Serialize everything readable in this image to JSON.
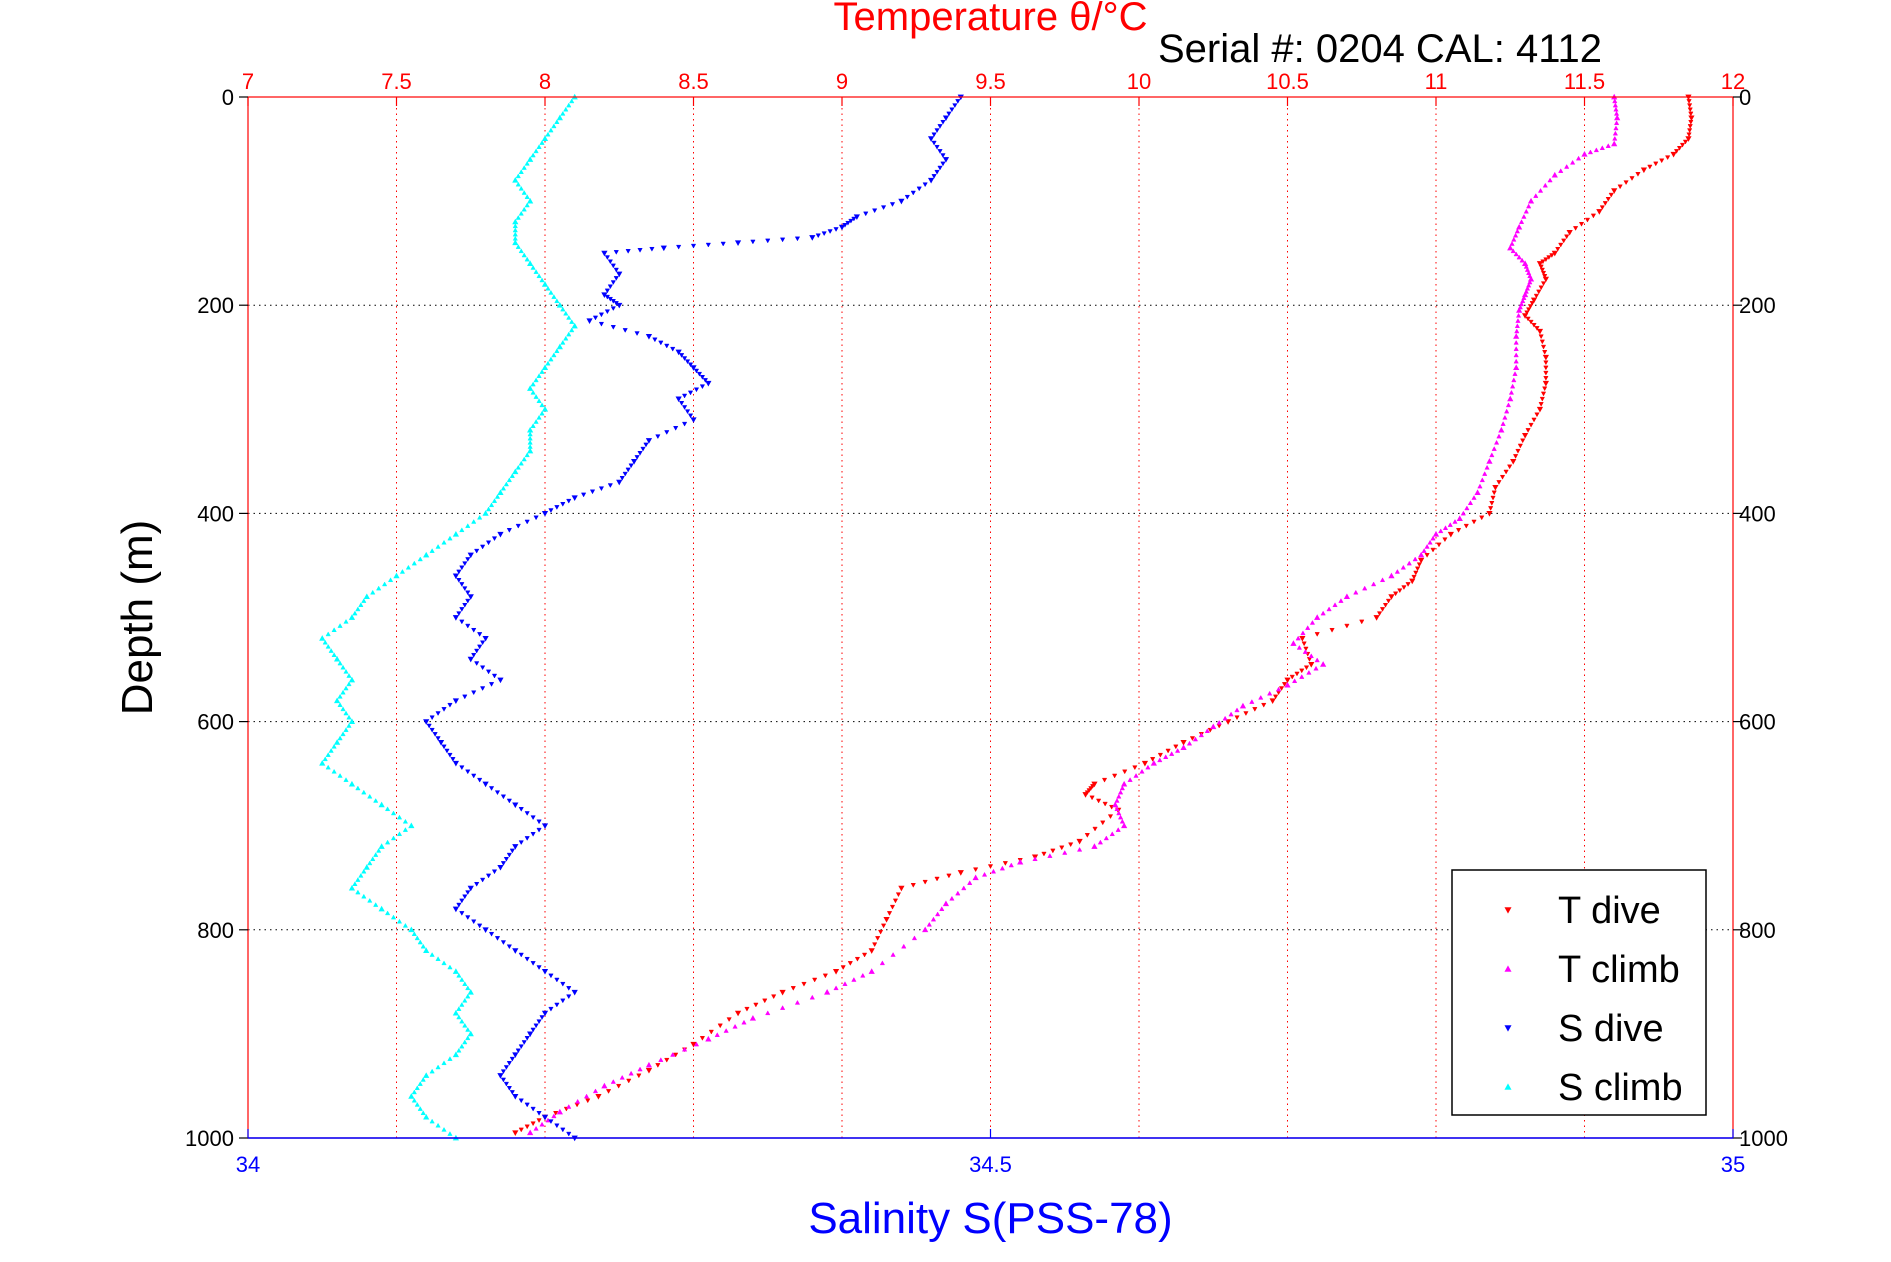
{
  "chart_data": {
    "type": "scatter",
    "title": "Temperature θ/°C",
    "subtitle": "Serial #: 0204  CAL: 4112",
    "ylabel": "Depth (m)",
    "xlabel_bottom": "Salinity S(PSS-78)",
    "y_axis": {
      "range": [
        0,
        1000
      ],
      "reversed": true,
      "ticks": [
        0,
        200,
        400,
        600,
        800,
        1000
      ],
      "tick_labels": [
        "0",
        "200",
        "400",
        "600",
        "800",
        "1000"
      ]
    },
    "x_axis_top": {
      "range": [
        7,
        12
      ],
      "ticks": [
        7,
        7.5,
        8,
        8.5,
        9,
        9.5,
        10,
        10.5,
        11,
        11.5,
        12
      ],
      "tick_labels": [
        "7",
        "7.5",
        "8",
        "8.5",
        "9",
        "9.5",
        "10",
        "10.5",
        "11",
        "11.5",
        "12"
      ],
      "color": "#ff0000"
    },
    "x_axis_bottom": {
      "range": [
        34,
        35
      ],
      "ticks": [
        34,
        34.5,
        35
      ],
      "tick_labels": [
        "34",
        "34.5",
        "35"
      ],
      "color": "#0000ff"
    },
    "grid": true,
    "legend_position": "bottom-right",
    "series": [
      {
        "name": "T dive",
        "axis": "temperature",
        "color": "#ff0000",
        "marker": "triangle-down",
        "points": [
          [
            11.85,
            0
          ],
          [
            11.86,
            20
          ],
          [
            11.85,
            40
          ],
          [
            11.8,
            55
          ],
          [
            11.7,
            70
          ],
          [
            11.6,
            90
          ],
          [
            11.55,
            110
          ],
          [
            11.45,
            130
          ],
          [
            11.4,
            150
          ],
          [
            11.35,
            160
          ],
          [
            11.37,
            175
          ],
          [
            11.33,
            195
          ],
          [
            11.3,
            210
          ],
          [
            11.35,
            225
          ],
          [
            11.37,
            250
          ],
          [
            11.37,
            275
          ],
          [
            11.35,
            300
          ],
          [
            11.3,
            325
          ],
          [
            11.26,
            350
          ],
          [
            11.2,
            375
          ],
          [
            11.18,
            400
          ],
          [
            11.05,
            420
          ],
          [
            10.95,
            445
          ],
          [
            10.92,
            465
          ],
          [
            10.85,
            480
          ],
          [
            10.8,
            500
          ],
          [
            10.55,
            520
          ],
          [
            10.58,
            545
          ],
          [
            10.5,
            560
          ],
          [
            10.45,
            580
          ],
          [
            10.3,
            600
          ],
          [
            10.15,
            620
          ],
          [
            10.02,
            640
          ],
          [
            9.85,
            660
          ],
          [
            9.82,
            670
          ],
          [
            9.93,
            685
          ],
          [
            9.8,
            715
          ],
          [
            9.65,
            730
          ],
          [
            9.4,
            745
          ],
          [
            9.2,
            760
          ],
          [
            9.15,
            790
          ],
          [
            9.1,
            820
          ],
          [
            8.98,
            840
          ],
          [
            8.8,
            860
          ],
          [
            8.65,
            880
          ],
          [
            8.5,
            910
          ],
          [
            8.35,
            935
          ],
          [
            8.18,
            960
          ],
          [
            8.0,
            980
          ],
          [
            7.9,
            995
          ]
        ]
      },
      {
        "name": "T climb",
        "axis": "temperature",
        "color": "#ff00ff",
        "marker": "triangle-up",
        "points": [
          [
            11.6,
            0
          ],
          [
            11.61,
            20
          ],
          [
            11.6,
            45
          ],
          [
            11.5,
            55
          ],
          [
            11.4,
            75
          ],
          [
            11.32,
            100
          ],
          [
            11.28,
            125
          ],
          [
            11.25,
            145
          ],
          [
            11.3,
            160
          ],
          [
            11.32,
            175
          ],
          [
            11.3,
            190
          ],
          [
            11.28,
            205
          ],
          [
            11.27,
            230
          ],
          [
            11.27,
            260
          ],
          [
            11.25,
            290
          ],
          [
            11.22,
            320
          ],
          [
            11.18,
            350
          ],
          [
            11.14,
            380
          ],
          [
            11.08,
            405
          ],
          [
            11.0,
            420
          ],
          [
            10.95,
            440
          ],
          [
            10.85,
            460
          ],
          [
            10.7,
            480
          ],
          [
            10.6,
            500
          ],
          [
            10.52,
            525
          ],
          [
            10.62,
            545
          ],
          [
            10.5,
            565
          ],
          [
            10.35,
            585
          ],
          [
            10.25,
            605
          ],
          [
            10.15,
            625
          ],
          [
            10.05,
            640
          ],
          [
            9.95,
            660
          ],
          [
            9.92,
            680
          ],
          [
            9.95,
            700
          ],
          [
            9.85,
            720
          ],
          [
            9.6,
            735
          ],
          [
            9.45,
            750
          ],
          [
            9.35,
            775
          ],
          [
            9.28,
            800
          ],
          [
            9.1,
            840
          ],
          [
            8.95,
            860
          ],
          [
            8.7,
            885
          ],
          [
            8.55,
            905
          ],
          [
            8.35,
            930
          ],
          [
            8.2,
            950
          ],
          [
            8.05,
            975
          ],
          [
            7.95,
            995
          ]
        ]
      },
      {
        "name": "S dive",
        "axis": "salinity",
        "color": "#0000ff",
        "marker": "triangle-down",
        "points": [
          [
            34.48,
            0
          ],
          [
            34.47,
            20
          ],
          [
            34.46,
            40
          ],
          [
            34.47,
            60
          ],
          [
            34.46,
            80
          ],
          [
            34.44,
            100
          ],
          [
            34.41,
            115
          ],
          [
            34.4,
            125
          ],
          [
            34.38,
            135
          ],
          [
            34.33,
            140
          ],
          [
            34.28,
            145
          ],
          [
            34.24,
            150
          ],
          [
            34.25,
            170
          ],
          [
            34.24,
            190
          ],
          [
            34.25,
            200
          ],
          [
            34.23,
            215
          ],
          [
            34.27,
            230
          ],
          [
            34.29,
            245
          ],
          [
            34.3,
            260
          ],
          [
            34.31,
            275
          ],
          [
            34.29,
            290
          ],
          [
            34.3,
            310
          ],
          [
            34.27,
            330
          ],
          [
            34.26,
            350
          ],
          [
            34.25,
            370
          ],
          [
            34.22,
            385
          ],
          [
            34.2,
            400
          ],
          [
            34.17,
            420
          ],
          [
            34.15,
            440
          ],
          [
            34.14,
            460
          ],
          [
            34.15,
            480
          ],
          [
            34.14,
            500
          ],
          [
            34.16,
            520
          ],
          [
            34.15,
            540
          ],
          [
            34.17,
            560
          ],
          [
            34.14,
            580
          ],
          [
            34.12,
            600
          ],
          [
            34.13,
            620
          ],
          [
            34.14,
            640
          ],
          [
            34.16,
            660
          ],
          [
            34.18,
            680
          ],
          [
            34.2,
            700
          ],
          [
            34.18,
            720
          ],
          [
            34.17,
            740
          ],
          [
            34.15,
            760
          ],
          [
            34.14,
            780
          ],
          [
            34.16,
            800
          ],
          [
            34.18,
            820
          ],
          [
            34.2,
            840
          ],
          [
            34.22,
            860
          ],
          [
            34.2,
            880
          ],
          [
            34.19,
            900
          ],
          [
            34.18,
            920
          ],
          [
            34.17,
            940
          ],
          [
            34.18,
            960
          ],
          [
            34.2,
            980
          ],
          [
            34.22,
            1000
          ]
        ]
      },
      {
        "name": "S climb",
        "axis": "salinity",
        "color": "#00ffff",
        "marker": "triangle-up",
        "points": [
          [
            34.22,
            0
          ],
          [
            34.21,
            20
          ],
          [
            34.2,
            40
          ],
          [
            34.19,
            60
          ],
          [
            34.18,
            80
          ],
          [
            34.19,
            100
          ],
          [
            34.18,
            120
          ],
          [
            34.18,
            140
          ],
          [
            34.19,
            160
          ],
          [
            34.2,
            180
          ],
          [
            34.21,
            200
          ],
          [
            34.22,
            220
          ],
          [
            34.21,
            240
          ],
          [
            34.2,
            260
          ],
          [
            34.19,
            280
          ],
          [
            34.2,
            300
          ],
          [
            34.19,
            320
          ],
          [
            34.19,
            340
          ],
          [
            34.18,
            360
          ],
          [
            34.17,
            380
          ],
          [
            34.16,
            400
          ],
          [
            34.14,
            420
          ],
          [
            34.12,
            440
          ],
          [
            34.1,
            460
          ],
          [
            34.08,
            480
          ],
          [
            34.07,
            500
          ],
          [
            34.05,
            520
          ],
          [
            34.06,
            540
          ],
          [
            34.07,
            560
          ],
          [
            34.06,
            580
          ],
          [
            34.07,
            600
          ],
          [
            34.06,
            620
          ],
          [
            34.05,
            640
          ],
          [
            34.07,
            660
          ],
          [
            34.09,
            680
          ],
          [
            34.11,
            700
          ],
          [
            34.09,
            720
          ],
          [
            34.08,
            740
          ],
          [
            34.07,
            760
          ],
          [
            34.09,
            780
          ],
          [
            34.11,
            800
          ],
          [
            34.12,
            820
          ],
          [
            34.14,
            840
          ],
          [
            34.15,
            860
          ],
          [
            34.14,
            880
          ],
          [
            34.15,
            900
          ],
          [
            34.14,
            920
          ],
          [
            34.12,
            940
          ],
          [
            34.11,
            960
          ],
          [
            34.12,
            980
          ],
          [
            34.14,
            1000
          ]
        ]
      }
    ]
  }
}
